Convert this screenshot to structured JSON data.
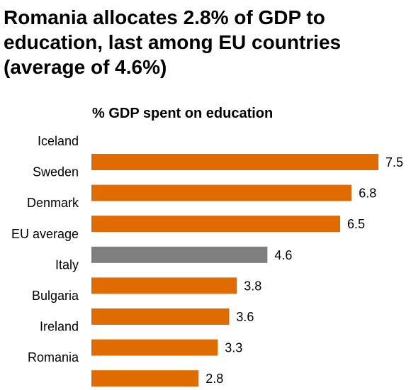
{
  "header": {
    "title_line1": "Romania allocates 2.8% of GDP to",
    "title_line2": "education, last among EU countries",
    "title_line3": "(average of 4.6%)"
  },
  "chart_data": {
    "type": "bar",
    "orientation": "horizontal",
    "title": "% GDP spent on education",
    "categories": [
      "Iceland",
      "Sweden",
      "Denmark",
      "EU average",
      "Italy",
      "Bulgaria",
      "Ireland",
      "Romania"
    ],
    "values": [
      7.5,
      6.8,
      6.5,
      4.6,
      3.8,
      3.6,
      3.3,
      2.8
    ],
    "value_labels": [
      "7.5",
      "6.8",
      "6.5",
      "4.6",
      "3.8",
      "3.6",
      "3.3",
      "2.8"
    ],
    "highlight_category": "EU average",
    "xlim": [
      0,
      7.5
    ],
    "xlabel": "",
    "ylabel": "",
    "grid": false,
    "legend": "none",
    "colors": {
      "bar": "#E06B00",
      "highlight": "#7F7F7F"
    }
  }
}
